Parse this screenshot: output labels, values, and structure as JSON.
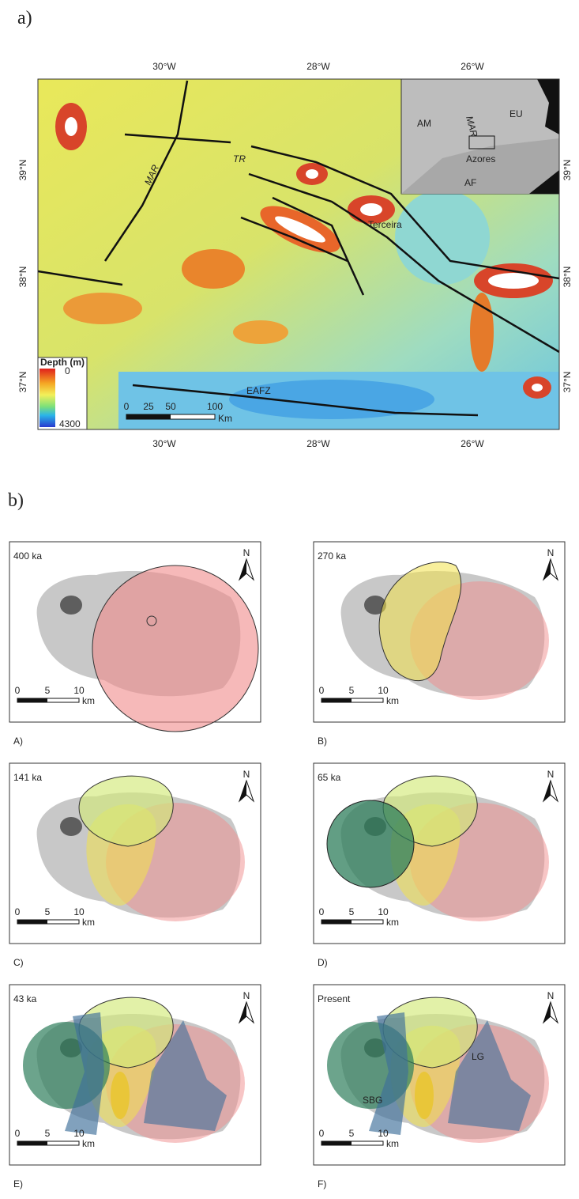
{
  "figure_a": {
    "label": "a)",
    "lon_labels": [
      "30°W",
      "28°W",
      "26°W"
    ],
    "lat_labels": [
      "39°N",
      "38°N",
      "37°N"
    ],
    "map_labels": {
      "mar": "MAR",
      "tr": "TR",
      "terceira": "Terceira",
      "eafz": "EAFZ"
    },
    "inset": {
      "am": "AM",
      "eu": "EU",
      "mar": "MAR",
      "azores": "Azores",
      "af": "AF"
    },
    "legend": {
      "title": "Depth (m)",
      "min": "0",
      "max": "4300"
    },
    "scale": {
      "ticks": [
        "0",
        "25",
        "50",
        "100"
      ],
      "unit": "Km"
    }
  },
  "figure_b": {
    "label": "b)",
    "north": "N",
    "scale": {
      "ticks": [
        "0",
        "5",
        "10"
      ],
      "unit": "km"
    },
    "panels": [
      {
        "age": "400 ka",
        "caption": "A)"
      },
      {
        "age": "270 ka",
        "caption": "B)"
      },
      {
        "age": "141 ka",
        "caption": "C)"
      },
      {
        "age": "65 ka",
        "caption": "D)"
      },
      {
        "age": "43 ka",
        "caption": "E)"
      },
      {
        "age": "Present",
        "caption": "F)",
        "labels": [
          "LG",
          "SBG"
        ]
      }
    ]
  }
}
